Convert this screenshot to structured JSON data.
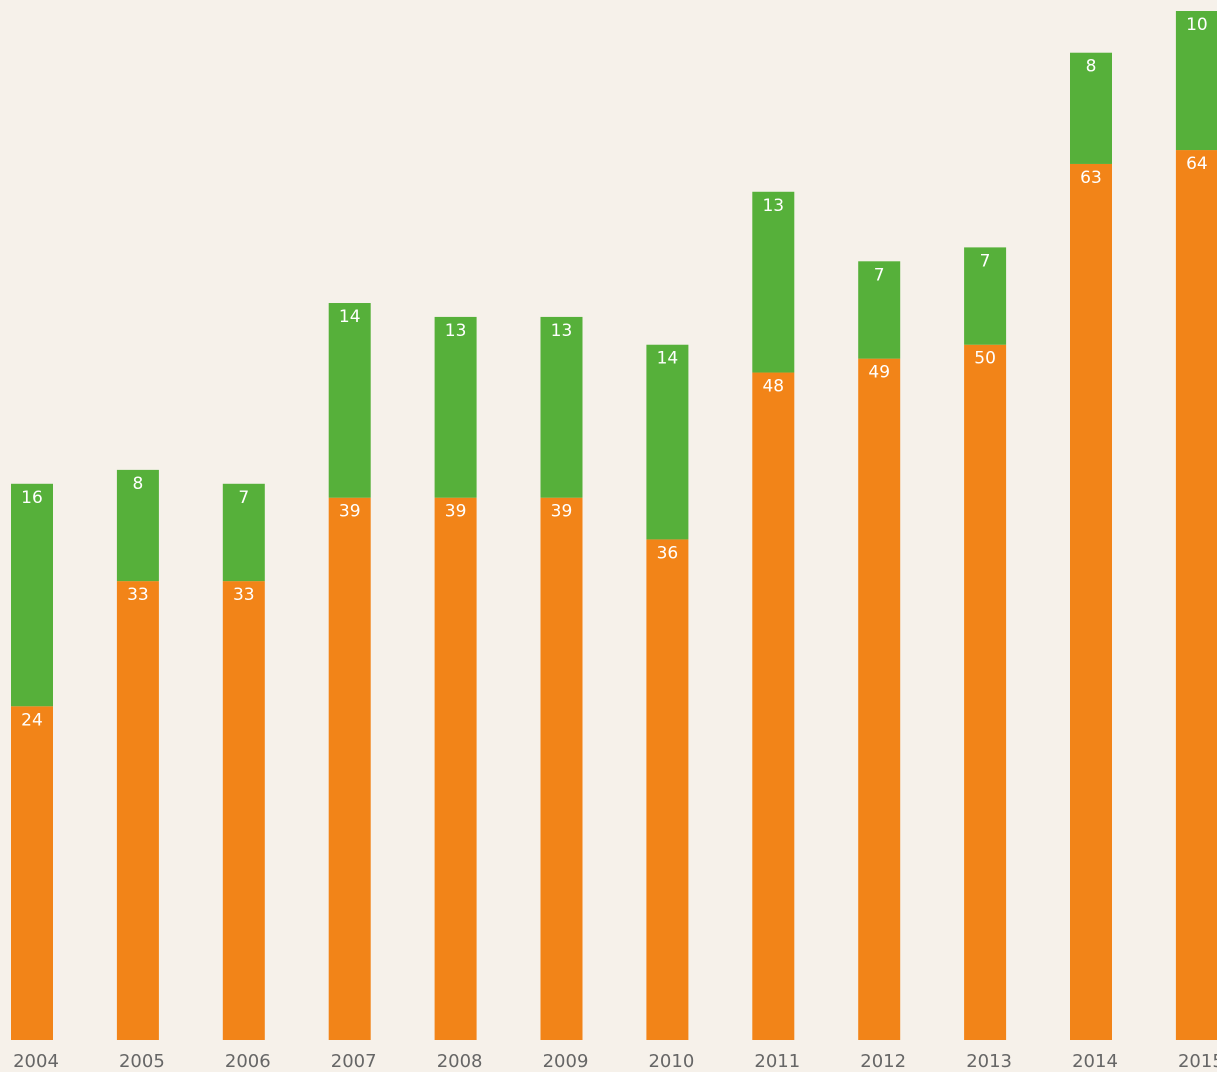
{
  "chart_data": {
    "type": "stacked_bar",
    "categories": [
      "2004",
      "2005",
      "2006",
      "2007",
      "2008",
      "2009",
      "2010",
      "2011",
      "2012",
      "2013",
      "2014",
      "2015"
    ],
    "series": [
      {
        "color": "#f28418",
        "values": [
          24,
          33,
          33,
          39,
          39,
          39,
          36,
          48,
          49,
          50,
          63,
          64
        ]
      },
      {
        "color": "#56b03a",
        "values": [
          16,
          8,
          7,
          14,
          13,
          13,
          14,
          13,
          7,
          7,
          8,
          10
        ]
      }
    ]
  }
}
